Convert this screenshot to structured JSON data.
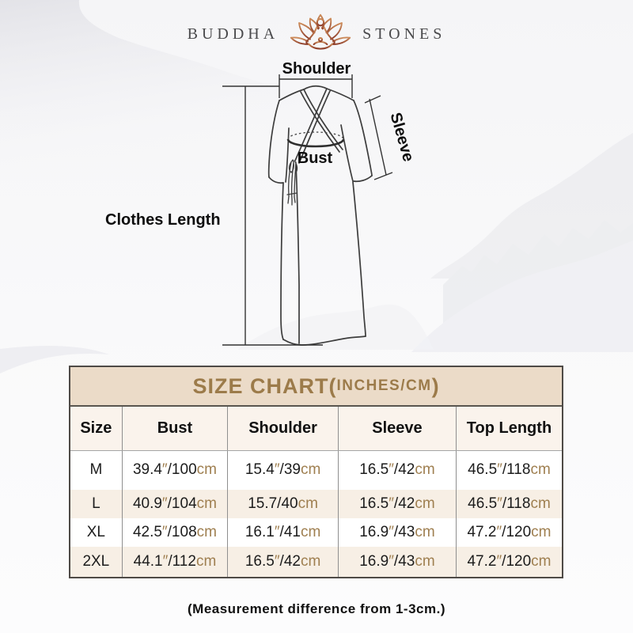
{
  "brand": {
    "left": "BUDDHA",
    "right": "STONES"
  },
  "diagram": {
    "labels": {
      "shoulder": "Shoulder",
      "sleeve": "Sleeve",
      "bust": "Bust",
      "clothes_length": "Clothes Length"
    }
  },
  "size_chart": {
    "title_main": "SIZE CHART(",
    "title_sub": "INCHES/CM",
    "title_close": ")",
    "columns": [
      "Size",
      "Bust",
      "Shoulder",
      "Sleeve",
      "Top Length"
    ],
    "rows": [
      {
        "size": "M",
        "cells": [
          {
            "in": "39.4",
            "mark": true,
            "cm": "100"
          },
          {
            "in": "15.4",
            "mark": true,
            "cm": "39"
          },
          {
            "in": "16.5",
            "mark": true,
            "cm": "42"
          },
          {
            "in": "46.5",
            "mark": true,
            "cm": "118"
          }
        ]
      },
      {
        "size": "L",
        "cells": [
          {
            "in": "40.9",
            "mark": true,
            "cm": "104"
          },
          {
            "in": "15.7",
            "mark": false,
            "cm": "40"
          },
          {
            "in": "16.5",
            "mark": true,
            "cm": "42"
          },
          {
            "in": "46.5",
            "mark": true,
            "cm": "118"
          }
        ]
      },
      {
        "size": "XL",
        "cells": [
          {
            "in": "42.5",
            "mark": true,
            "cm": "108"
          },
          {
            "in": "16.1",
            "mark": true,
            "cm": "41"
          },
          {
            "in": "16.9",
            "mark": true,
            "cm": "43"
          },
          {
            "in": "47.2",
            "mark": true,
            "cm": "120"
          }
        ]
      },
      {
        "size": "2XL",
        "cells": [
          {
            "in": "44.1",
            "mark": true,
            "cm": "112"
          },
          {
            "in": "16.5",
            "mark": true,
            "cm": "42"
          },
          {
            "in": "16.9",
            "mark": true,
            "cm": "43"
          },
          {
            "in": "47.2",
            "mark": true,
            "cm": "120"
          }
        ]
      }
    ],
    "inch_mark": "″",
    "cm_unit": "cm",
    "separator": "/"
  },
  "footer": {
    "note": "(Measurement difference from 1-3cm.)"
  },
  "colors": {
    "accent_brown": "#9c7b4a",
    "unit_brown": "#9f7f50",
    "table_header_bg": "#ebdbc8",
    "row_alt_bg": "#f7efe5",
    "logo_gradient_top": "#cd8c5a",
    "logo_gradient_bottom": "#8c3b28",
    "line_color": "#3d3d3d"
  }
}
